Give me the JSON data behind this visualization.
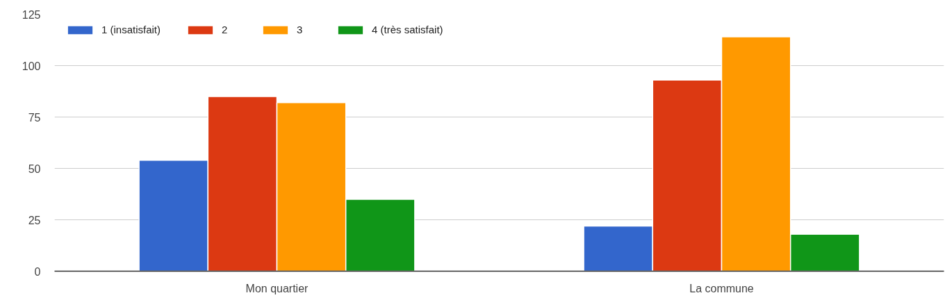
{
  "chart_data": {
    "type": "bar",
    "categories": [
      "Mon quartier",
      "La commune"
    ],
    "series": [
      {
        "name": "1 (insatisfait)",
        "color": "#3366cc",
        "values": [
          54,
          22
        ]
      },
      {
        "name": "2",
        "color": "#dc3912",
        "values": [
          85,
          93
        ]
      },
      {
        "name": "3",
        "color": "#ff9900",
        "values": [
          82,
          114
        ]
      },
      {
        "name": "4 (très satisfait)",
        "color": "#109618",
        "values": [
          35,
          18
        ]
      }
    ],
    "ylim": [
      0,
      125
    ],
    "yticks": [
      0,
      25,
      50,
      75,
      100,
      125
    ],
    "grid": "y",
    "legend": "top left"
  }
}
